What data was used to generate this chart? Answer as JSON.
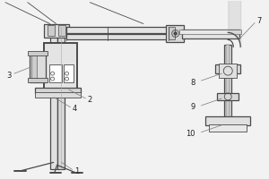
{
  "bg_color": "#f2f2f2",
  "line_color": "#4a4a4a",
  "label_color": "#222222",
  "figsize": [
    3.0,
    2.0
  ],
  "dpi": 100
}
